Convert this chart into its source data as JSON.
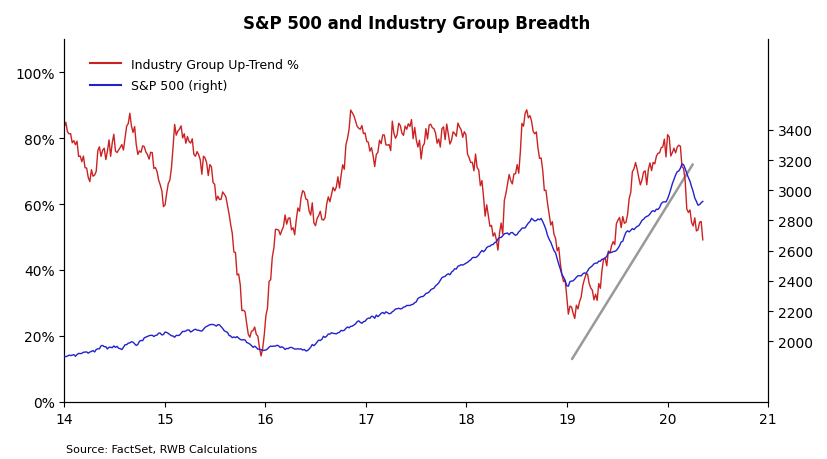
{
  "title": "S&P 500 and Industry Group Breadth",
  "source_text": "Source: FactSet, RWB Calculations",
  "xlim": [
    14,
    21
  ],
  "ylim_left": [
    0,
    1.1
  ],
  "ylim_right": [
    1600,
    4000
  ],
  "yticks_left": [
    0.0,
    0.2,
    0.4,
    0.6,
    0.8,
    1.0
  ],
  "yticks_right": [
    2000,
    2200,
    2400,
    2600,
    2800,
    3000,
    3200,
    3400
  ],
  "xticks": [
    14,
    15,
    16,
    17,
    18,
    19,
    20,
    21
  ],
  "sp500_color": "#2222CC",
  "breadth_color": "#CC2222",
  "trendline_color": "#999999",
  "legend_entries": [
    "Industry Group Up-Trend %",
    "S&P 500 (right)"
  ],
  "trendline_x": [
    19.05,
    20.25
  ],
  "trendline_y": [
    0.13,
    0.72
  ]
}
